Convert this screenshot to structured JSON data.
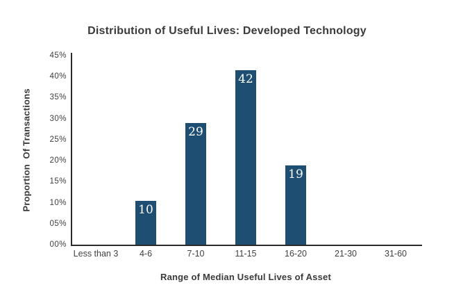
{
  "chart_data": {
    "type": "bar",
    "title": "Distribution of Useful Lives: Developed Technology",
    "xlabel": "Range of Median Useful Lives of Asset",
    "ylabel": "Proportion  Of Transactions",
    "categories": [
      "Less than 3",
      "4-6",
      "7-10",
      "11-15",
      "16-20",
      "21-30",
      "31-60"
    ],
    "values": [
      0,
      10.5,
      29,
      41.5,
      18.8,
      0,
      0
    ],
    "data_labels": [
      null,
      "10",
      "29",
      "42",
      "19",
      null,
      null
    ],
    "ylim": [
      0,
      45
    ],
    "ytick_step": 5,
    "ytick_labels": [
      "00%",
      "05%",
      "10%",
      "15%",
      "20%",
      "25%",
      "30%",
      "35%",
      "40%",
      "45%"
    ],
    "grid": false,
    "legend": null,
    "colors": {
      "bar": "#1F4E73",
      "bar_label": "#FFFFFF",
      "axis_line": "#2B2B2B",
      "text": "#3A3A3A",
      "tick_text": "#3F3F3F",
      "background": "#FFFFFF"
    }
  }
}
